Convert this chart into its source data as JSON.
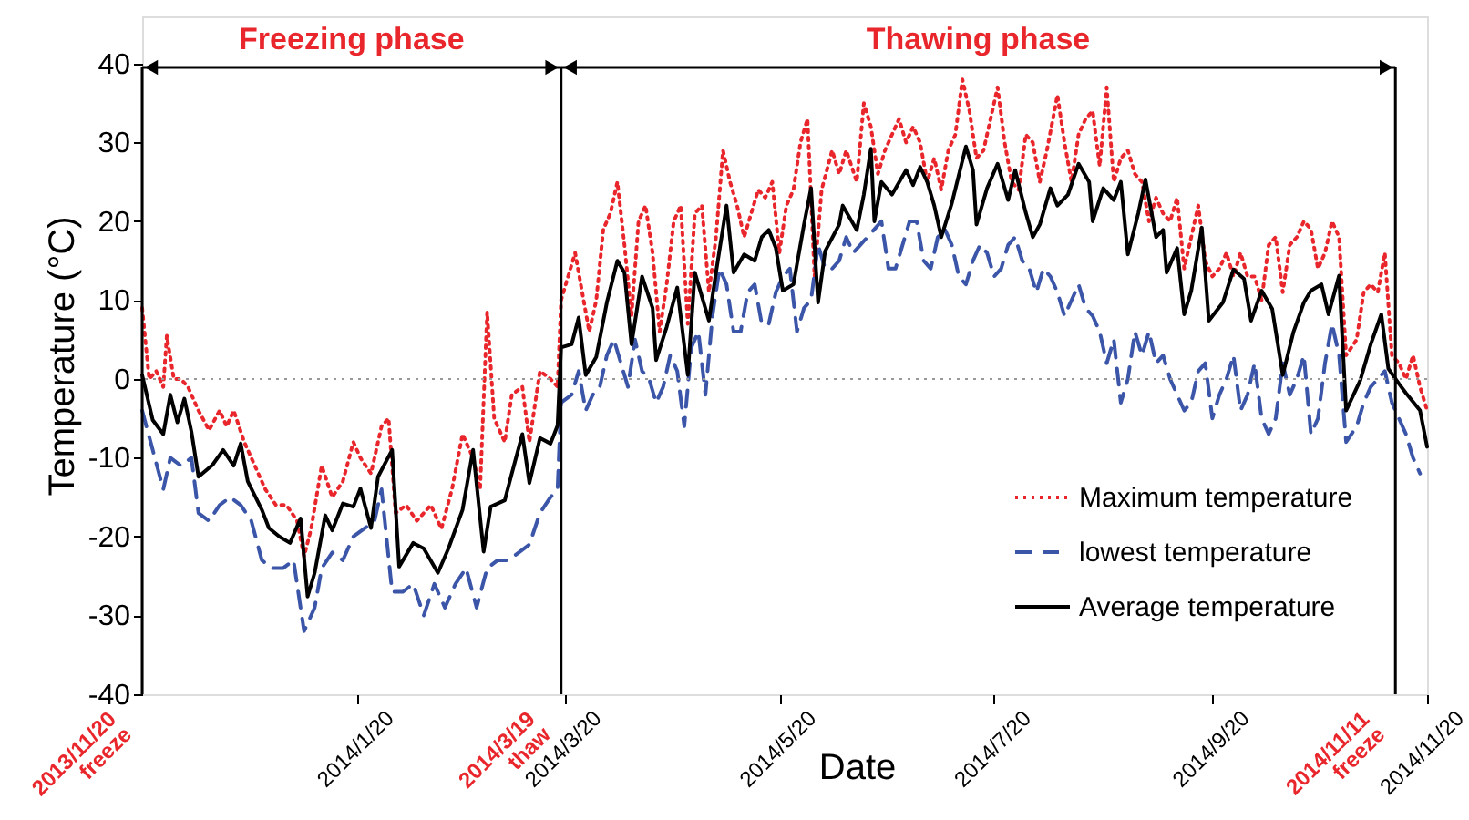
{
  "chart_data": {
    "type": "line",
    "xlabel": "Date",
    "ylabel": "Temperature (°C)",
    "xlim": [
      "2013-11-20",
      "2014-11-20"
    ],
    "ylim": [
      -40,
      46
    ],
    "xticks": [
      {
        "value": "2014-01-20",
        "label": "2014/1/20"
      },
      {
        "value": "2014-03-20",
        "label": "2014/3/20"
      },
      {
        "value": "2014-05-20",
        "label": "2014/5/20"
      },
      {
        "value": "2014-07-20",
        "label": "2014/7/20"
      },
      {
        "value": "2014-09-20",
        "label": "2014/9/20"
      },
      {
        "value": "2014-11-20",
        "label": "2014/11/20"
      }
    ],
    "yticks": [
      -40,
      -30,
      -20,
      -10,
      0,
      10,
      20,
      30,
      40
    ],
    "legend": "bottom right",
    "ref_lines": [
      {
        "axis": "y",
        "value": 0,
        "color": "#999999",
        "line_style": "dotted"
      },
      {
        "axis": "x",
        "value": "2013-11-20",
        "label": "2013/11/20 freeze"
      },
      {
        "axis": "x",
        "value": "2014-03-19",
        "label": "2014/3/19 thaw"
      },
      {
        "axis": "x",
        "value": "2014-11-11",
        "label": "2014/11/11 freeze"
      }
    ],
    "annotations": [
      "Freezing phase",
      "Thawing phase"
    ],
    "series": [
      {
        "name": "Maximum temperature",
        "color": "#e8262b",
        "line_style": "dotted",
        "x": [
          "2013-11-20",
          "2013-11-22",
          "2013-11-24",
          "2013-11-26",
          "2013-11-27",
          "2013-11-29",
          "2013-12-01",
          "2013-12-03",
          "2013-12-06",
          "2013-12-09",
          "2013-12-12",
          "2013-12-14",
          "2013-12-16",
          "2013-12-19",
          "2013-12-22",
          "2013-12-25",
          "2013-12-28",
          "2013-12-31",
          "2014-01-03",
          "2014-01-05",
          "2014-01-07",
          "2014-01-10",
          "2014-01-13",
          "2014-01-16",
          "2014-01-19",
          "2014-01-21",
          "2014-01-24",
          "2014-01-27",
          "2014-01-29",
          "2014-01-31",
          "2014-02-03",
          "2014-02-06",
          "2014-02-10",
          "2014-02-13",
          "2014-02-16",
          "2014-02-19",
          "2014-02-22",
          "2014-02-24",
          "2014-02-26",
          "2014-02-28",
          "2014-03-03",
          "2014-03-05",
          "2014-03-08",
          "2014-03-10",
          "2014-03-13",
          "2014-03-16",
          "2014-03-18",
          "2014-03-19",
          "2014-03-21",
          "2014-03-23",
          "2014-03-25",
          "2014-03-27",
          "2014-03-29",
          "2014-03-31",
          "2014-04-02",
          "2014-04-04",
          "2014-04-06",
          "2014-04-08",
          "2014-04-10",
          "2014-04-12",
          "2014-04-14",
          "2014-04-16",
          "2014-04-18",
          "2014-04-20",
          "2014-04-22",
          "2014-04-24",
          "2014-04-26",
          "2014-04-28",
          "2014-04-30",
          "2014-05-02",
          "2014-05-04",
          "2014-05-06",
          "2014-05-08",
          "2014-05-10",
          "2014-05-12",
          "2014-05-14",
          "2014-05-16",
          "2014-05-18",
          "2014-05-20",
          "2014-05-22",
          "2014-05-24",
          "2014-05-26",
          "2014-05-28",
          "2014-05-30",
          "2014-06-01",
          "2014-06-04",
          "2014-06-06",
          "2014-06-08",
          "2014-06-11",
          "2014-06-13",
          "2014-06-15",
          "2014-06-17",
          "2014-06-19",
          "2014-06-21",
          "2014-06-23",
          "2014-06-25",
          "2014-06-27",
          "2014-06-29",
          "2014-07-01",
          "2014-07-03",
          "2014-07-05",
          "2014-07-07",
          "2014-07-09",
          "2014-07-11",
          "2014-07-13",
          "2014-07-15",
          "2014-07-17",
          "2014-07-19",
          "2014-07-21",
          "2014-07-23",
          "2014-07-25",
          "2014-07-27",
          "2014-07-29",
          "2014-07-31",
          "2014-08-02",
          "2014-08-04",
          "2014-08-07",
          "2014-08-09",
          "2014-08-11",
          "2014-08-13",
          "2014-08-15",
          "2014-08-17",
          "2014-08-19",
          "2014-08-21",
          "2014-08-23",
          "2014-08-25",
          "2014-08-27",
          "2014-08-29",
          "2014-08-31",
          "2014-09-02",
          "2014-09-04",
          "2014-09-06",
          "2014-09-08",
          "2014-09-10",
          "2014-09-12",
          "2014-09-14",
          "2014-09-16",
          "2014-09-18",
          "2014-09-20",
          "2014-09-22",
          "2014-09-24",
          "2014-09-26",
          "2014-09-28",
          "2014-09-30",
          "2014-10-02",
          "2014-10-04",
          "2014-10-06",
          "2014-10-08",
          "2014-10-10",
          "2014-10-12",
          "2014-10-14",
          "2014-10-16",
          "2014-10-18",
          "2014-10-20",
          "2014-10-22",
          "2014-10-24",
          "2014-10-26",
          "2014-10-28",
          "2014-10-31",
          "2014-11-02",
          "2014-11-04",
          "2014-11-06",
          "2014-11-08",
          "2014-11-10",
          "2014-11-12",
          "2014-11-14",
          "2014-11-16",
          "2014-11-18",
          "2014-11-20"
        ],
        "values": [
          9,
          0,
          1,
          -1,
          5.5,
          0,
          0,
          -1,
          -4,
          -6.5,
          -4,
          -6,
          -4,
          -8,
          -11,
          -14,
          -16,
          -16,
          -18,
          -22.5,
          -19,
          -11,
          -15,
          -13,
          -8,
          -10,
          -12,
          -6,
          -5,
          -17,
          -16,
          -18,
          -16,
          -19,
          -14,
          -7,
          -10,
          -14,
          8.5,
          -5,
          -8,
          -2,
          -1,
          -8,
          1,
          0,
          -1,
          10,
          13,
          16,
          11,
          6,
          10,
          19,
          21,
          25,
          17,
          8,
          20,
          22,
          16,
          6,
          12,
          20,
          22,
          7,
          21,
          22,
          11,
          18,
          29,
          25,
          22,
          18,
          21,
          24,
          23,
          25,
          16,
          22,
          24,
          30,
          33,
          13,
          24,
          29,
          26,
          29,
          25,
          35,
          32,
          26,
          29,
          31,
          33,
          30,
          32,
          30,
          25,
          28,
          24,
          29,
          31,
          38,
          34,
          28,
          29,
          33,
          37,
          30,
          25,
          24,
          31,
          30,
          25,
          29,
          36,
          30,
          25,
          31,
          33,
          34,
          27,
          37,
          25,
          28,
          29,
          26,
          25,
          20,
          23,
          21,
          20,
          23,
          14,
          18,
          22,
          15,
          13,
          14,
          16,
          13,
          16,
          13,
          13,
          10,
          17,
          18,
          11,
          17,
          18,
          20,
          19,
          14,
          16,
          20,
          18,
          3,
          5,
          11,
          12,
          11,
          16,
          3,
          2,
          0,
          3,
          -1,
          -4
        ]
      },
      {
        "name": "lowest temperature",
        "color": "#3b55a8",
        "line_style": "dashed",
        "x": [
          "2013-11-20",
          "2013-11-23",
          "2013-11-26",
          "2013-11-28",
          "2013-12-01",
          "2013-12-04",
          "2013-12-06",
          "2013-12-09",
          "2013-12-12",
          "2013-12-15",
          "2013-12-18",
          "2013-12-21",
          "2013-12-24",
          "2013-12-27",
          "2013-12-30",
          "2014-01-02",
          "2014-01-05",
          "2014-01-08",
          "2014-01-10",
          "2014-01-13",
          "2014-01-16",
          "2014-01-19",
          "2014-01-22",
          "2014-01-25",
          "2014-01-27",
          "2014-01-30",
          "2014-02-02",
          "2014-02-05",
          "2014-02-08",
          "2014-02-11",
          "2014-02-14",
          "2014-02-17",
          "2014-02-20",
          "2014-02-23",
          "2014-02-26",
          "2014-03-01",
          "2014-03-04",
          "2014-03-07",
          "2014-03-10",
          "2014-03-13",
          "2014-03-16",
          "2014-03-18",
          "2014-03-19",
          "2014-03-22",
          "2014-03-24",
          "2014-03-26",
          "2014-03-28",
          "2014-03-30",
          "2014-04-01",
          "2014-04-03",
          "2014-04-05",
          "2014-04-07",
          "2014-04-09",
          "2014-04-11",
          "2014-04-13",
          "2014-04-15",
          "2014-04-17",
          "2014-04-19",
          "2014-04-21",
          "2014-04-23",
          "2014-04-25",
          "2014-04-27",
          "2014-04-29",
          "2014-05-01",
          "2014-05-03",
          "2014-05-05",
          "2014-05-07",
          "2014-05-09",
          "2014-05-11",
          "2014-05-13",
          "2014-05-15",
          "2014-05-17",
          "2014-05-19",
          "2014-05-21",
          "2014-05-23",
          "2014-05-25",
          "2014-05-27",
          "2014-05-29",
          "2014-05-31",
          "2014-06-02",
          "2014-06-04",
          "2014-06-06",
          "2014-06-08",
          "2014-06-10",
          "2014-06-12",
          "2014-06-14",
          "2014-06-16",
          "2014-06-18",
          "2014-06-20",
          "2014-06-22",
          "2014-06-24",
          "2014-06-26",
          "2014-06-28",
          "2014-06-30",
          "2014-07-02",
          "2014-07-04",
          "2014-07-06",
          "2014-07-08",
          "2014-07-10",
          "2014-07-12",
          "2014-07-14",
          "2014-07-16",
          "2014-07-18",
          "2014-07-20",
          "2014-07-22",
          "2014-07-24",
          "2014-07-26",
          "2014-07-28",
          "2014-07-30",
          "2014-08-01",
          "2014-08-03",
          "2014-08-05",
          "2014-08-07",
          "2014-08-09",
          "2014-08-11",
          "2014-08-13",
          "2014-08-15",
          "2014-08-17",
          "2014-08-19",
          "2014-08-21",
          "2014-08-23",
          "2014-08-25",
          "2014-08-27",
          "2014-08-29",
          "2014-08-31",
          "2014-09-02",
          "2014-09-04",
          "2014-09-06",
          "2014-09-08",
          "2014-09-10",
          "2014-09-12",
          "2014-09-14",
          "2014-09-16",
          "2014-09-18",
          "2014-09-20",
          "2014-09-22",
          "2014-09-24",
          "2014-09-26",
          "2014-09-28",
          "2014-09-30",
          "2014-10-02",
          "2014-10-04",
          "2014-10-06",
          "2014-10-08",
          "2014-10-10",
          "2014-10-12",
          "2014-10-14",
          "2014-10-16",
          "2014-10-18",
          "2014-10-20",
          "2014-10-22",
          "2014-10-24",
          "2014-10-26",
          "2014-10-28",
          "2014-10-31",
          "2014-11-02",
          "2014-11-04",
          "2014-11-06",
          "2014-11-08",
          "2014-11-10",
          "2014-11-12",
          "2014-11-14",
          "2014-11-16",
          "2014-11-18"
        ],
        "values": [
          -4,
          -9,
          -14,
          -10,
          -11,
          -10,
          -17,
          -18,
          -16,
          -15,
          -16,
          -18,
          -23,
          -24,
          -24,
          -23,
          -32,
          -29,
          -24,
          -22,
          -23,
          -20,
          -19,
          -18,
          -14,
          -27,
          -27,
          -26,
          -30,
          -26,
          -29,
          -26,
          -24,
          -29,
          -24,
          -23,
          -23,
          -22,
          -21,
          -17,
          -15,
          -14,
          -3,
          -2,
          1,
          -4,
          -2,
          -1,
          3,
          5,
          2,
          -1,
          5,
          1,
          0,
          -3,
          -1,
          3,
          1,
          -6,
          4,
          6,
          -2,
          8,
          14,
          12,
          6,
          6,
          11,
          12,
          7,
          7,
          11,
          13,
          14,
          6,
          9,
          10,
          17,
          14,
          14,
          15,
          18,
          16,
          17,
          18,
          19,
          20,
          14,
          14,
          17,
          20,
          20,
          15,
          14,
          18,
          19,
          17,
          13,
          12,
          15,
          17,
          16,
          13,
          14,
          17,
          18,
          15,
          14,
          11,
          14,
          13,
          11,
          8,
          10,
          12,
          9,
          8,
          6,
          2,
          5,
          -3,
          0,
          6,
          3,
          6,
          2,
          3,
          0,
          -2,
          -4,
          -3,
          1,
          2,
          -5,
          -2,
          0,
          3,
          -4,
          -2,
          2,
          -5,
          -7,
          -5,
          2,
          -2,
          0,
          3,
          -7,
          -5,
          2,
          7,
          3,
          -8,
          -6,
          -3,
          -1,
          0,
          1,
          -3,
          -5,
          -7,
          -10,
          -12
        ]
      },
      {
        "name": "Average temperature",
        "color": "#000000",
        "line_style": "solid",
        "x": [
          "2013-11-20",
          "2013-11-23",
          "2013-11-26",
          "2013-11-28",
          "2013-11-30",
          "2013-12-02",
          "2013-12-04",
          "2013-12-06",
          "2013-12-10",
          "2013-12-13",
          "2013-12-16",
          "2013-12-18",
          "2013-12-20",
          "2013-12-24",
          "2013-12-26",
          "2013-12-29",
          "2014-01-01",
          "2014-01-04",
          "2014-01-06",
          "2014-01-08",
          "2014-01-11",
          "2014-01-13",
          "2014-01-16",
          "2014-01-19",
          "2014-01-21",
          "2014-01-24",
          "2014-01-26",
          "2014-01-30",
          "2014-02-01",
          "2014-02-05",
          "2014-02-08",
          "2014-02-12",
          "2014-02-15",
          "2014-02-19",
          "2014-02-22",
          "2014-02-25",
          "2014-02-27",
          "2014-03-03",
          "2014-03-05",
          "2014-03-08",
          "2014-03-10",
          "2014-03-13",
          "2014-03-16",
          "2014-03-18",
          "2014-03-19",
          "2014-03-22",
          "2014-03-24",
          "2014-03-26",
          "2014-03-29",
          "2014-04-01",
          "2014-04-04",
          "2014-04-06",
          "2014-04-08",
          "2014-04-11",
          "2014-04-14",
          "2014-04-15",
          "2014-04-18",
          "2014-04-21",
          "2014-04-24",
          "2014-04-26",
          "2014-04-30",
          "2014-05-02",
          "2014-05-05",
          "2014-05-07",
          "2014-05-10",
          "2014-05-13",
          "2014-05-15",
          "2014-05-17",
          "2014-05-19",
          "2014-05-21",
          "2014-05-24",
          "2014-05-27",
          "2014-05-29",
          "2014-05-31",
          "2014-06-02",
          "2014-06-06",
          "2014-06-07",
          "2014-06-11",
          "2014-06-13",
          "2014-06-15",
          "2014-06-16",
          "2014-06-18",
          "2014-06-21",
          "2014-06-25",
          "2014-06-27",
          "2014-06-29",
          "2014-07-01",
          "2014-07-03",
          "2014-07-05",
          "2014-07-08",
          "2014-07-12",
          "2014-07-14",
          "2014-07-15",
          "2014-07-18",
          "2014-07-21",
          "2014-07-24",
          "2014-07-26",
          "2014-07-29",
          "2014-07-31",
          "2014-08-02",
          "2014-08-05",
          "2014-08-07",
          "2014-08-10",
          "2014-08-13",
          "2014-08-16",
          "2014-08-17",
          "2014-08-20",
          "2014-08-23",
          "2014-08-25",
          "2014-08-27",
          "2014-08-30",
          "2014-09-01",
          "2014-09-04",
          "2014-09-06",
          "2014-09-07",
          "2014-09-10",
          "2014-09-12",
          "2014-09-14",
          "2014-09-17",
          "2014-09-19",
          "2014-09-23",
          "2014-09-26",
          "2014-09-29",
          "2014-10-01",
          "2014-10-04",
          "2014-10-07",
          "2014-10-10",
          "2014-10-13",
          "2014-10-16",
          "2014-10-18",
          "2014-10-21",
          "2014-10-23",
          "2014-10-26",
          "2014-10-28",
          "2014-11-01",
          "2014-11-04",
          "2014-11-07",
          "2014-11-09",
          "2014-11-12",
          "2014-11-14",
          "2014-11-18",
          "2014-11-20"
        ],
        "values": [
          0.5,
          -5.2,
          -7,
          -2,
          -5.5,
          -2.5,
          -6.7,
          -12.4,
          -10.9,
          -9,
          -11,
          -8.2,
          -13,
          -16.6,
          -18.9,
          -20,
          -20.8,
          -17.7,
          -27.6,
          -24.6,
          -17.3,
          -19.2,
          -15.8,
          -16.2,
          -13.9,
          -18.9,
          -12.4,
          -9,
          -23.8,
          -20.8,
          -21.5,
          -24.6,
          -21.5,
          -16.6,
          -9,
          -21.9,
          -16.2,
          -15.4,
          -12,
          -7,
          -13.2,
          -7.5,
          -8.2,
          -5.9,
          4,
          4.4,
          7.8,
          0.5,
          2.8,
          9.7,
          15,
          13.5,
          4.4,
          13,
          9,
          2.4,
          6.6,
          11.6,
          0.5,
          13.5,
          7.4,
          13.5,
          22,
          13.5,
          15.8,
          15,
          18,
          18.9,
          16.6,
          11.2,
          12,
          19.6,
          24.2,
          9.7,
          16.2,
          19.6,
          22,
          18.9,
          23.4,
          29.2,
          20,
          25,
          23.4,
          26.5,
          24.6,
          26.9,
          25,
          22,
          18,
          22.3,
          29.5,
          26.5,
          19.6,
          24.2,
          27.3,
          22.7,
          26.5,
          21.1,
          18,
          19.6,
          24.2,
          22,
          23.4,
          27.3,
          25,
          20,
          24.2,
          22.7,
          25,
          15.8,
          21.1,
          25.3,
          18,
          18.9,
          13.5,
          16.6,
          8.2,
          11.2,
          19.2,
          7.4,
          9.7,
          13.9,
          12.7,
          7.4,
          11.2,
          8.9,
          0.5,
          5.9,
          9.7,
          11.2,
          12,
          8.2,
          13.1,
          -4,
          -0.2,
          4.4,
          8.2,
          1.3,
          -0.6,
          -1.8,
          -4,
          -8.6
        ]
      }
    ]
  }
}
